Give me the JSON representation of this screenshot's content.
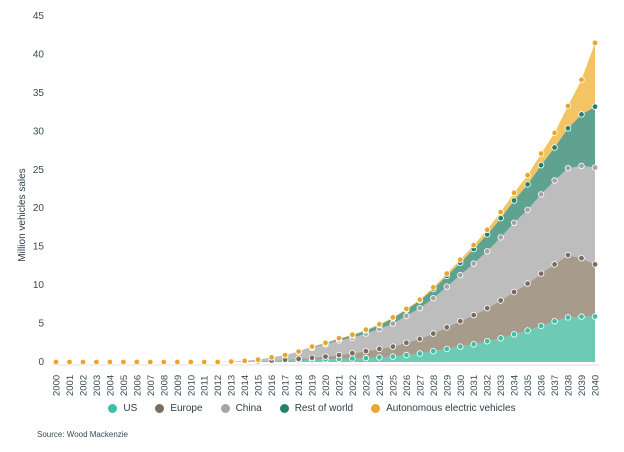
{
  "chart_data": {
    "type": "area",
    "stacked": true,
    "ylabel": "Million vehicles sales",
    "xlabel": "",
    "ylim": [
      0,
      45
    ],
    "yticks": [
      0,
      5,
      10,
      15,
      20,
      25,
      30,
      35,
      40,
      45
    ],
    "x": [
      "2000",
      "2001",
      "2002",
      "2003",
      "2004",
      "2005",
      "2006",
      "2007",
      "2008",
      "2009",
      "2010",
      "2011",
      "2012",
      "2013",
      "2014",
      "2015",
      "2016",
      "2017",
      "2018",
      "2019",
      "2020",
      "2021",
      "2022",
      "2023",
      "2024",
      "2025",
      "2026",
      "2027",
      "2028",
      "2029",
      "2030",
      "2031",
      "2032",
      "2033",
      "2034",
      "2035",
      "2036",
      "2037",
      "2038",
      "2039",
      "2040"
    ],
    "series": [
      {
        "name": "US",
        "color": "#6dcbb5",
        "marker": "#3cbfa5",
        "values": [
          0,
          0,
          0,
          0,
          0,
          0,
          0,
          0,
          0,
          0,
          0,
          0,
          0,
          0,
          0.05,
          0.1,
          0.15,
          0.2,
          0.25,
          0.3,
          0.35,
          0.4,
          0.45,
          0.5,
          0.6,
          0.7,
          0.9,
          1.1,
          1.4,
          1.7,
          2.0,
          2.3,
          2.7,
          3.1,
          3.6,
          4.1,
          4.7,
          5.3,
          5.8,
          5.9,
          5.9
        ]
      },
      {
        "name": "Europe",
        "color": "#a79b8c",
        "marker": "#7b6c5d",
        "values": [
          0,
          0,
          0,
          0,
          0,
          0,
          0,
          0,
          0,
          0,
          0,
          0,
          0,
          0,
          0,
          0,
          0.05,
          0.1,
          0.15,
          0.25,
          0.35,
          0.5,
          0.7,
          0.9,
          1.1,
          1.3,
          1.6,
          1.9,
          2.3,
          2.8,
          3.3,
          3.8,
          4.3,
          4.9,
          5.5,
          6.1,
          6.8,
          7.4,
          8.1,
          7.6,
          6.8
        ]
      },
      {
        "name": "China",
        "color": "#bdbdbd",
        "marker": "#a5a5a5",
        "values": [
          0,
          0,
          0,
          0,
          0,
          0,
          0,
          0,
          0,
          0,
          0,
          0,
          0,
          0.05,
          0.1,
          0.2,
          0.4,
          0.6,
          0.9,
          1.3,
          1.6,
          1.9,
          2.0,
          2.3,
          2.6,
          3.0,
          3.5,
          4.0,
          4.6,
          5.3,
          6.0,
          6.7,
          7.4,
          8.2,
          9.0,
          9.6,
          10.3,
          10.9,
          11.3,
          12.0,
          12.6
        ]
      },
      {
        "name": "Rest of world",
        "color": "#5fa290",
        "marker": "#26806a",
        "values": [
          0,
          0,
          0,
          0,
          0,
          0,
          0,
          0,
          0,
          0,
          0,
          0,
          0,
          0,
          0,
          0,
          0,
          0,
          0.05,
          0.1,
          0.15,
          0.2,
          0.3,
          0.4,
          0.5,
          0.7,
          0.8,
          1.0,
          1.2,
          1.4,
          1.6,
          1.9,
          2.2,
          2.5,
          2.9,
          3.3,
          3.8,
          4.3,
          5.2,
          6.7,
          7.9
        ]
      },
      {
        "name": "Autonomous electric vehicles",
        "color": "#f4c463",
        "marker": "#eba52c",
        "values": [
          0,
          0,
          0,
          0,
          0,
          0,
          0,
          0,
          0,
          0,
          0,
          0,
          0,
          0,
          0,
          0,
          0,
          0,
          0,
          0.05,
          0.05,
          0.1,
          0.1,
          0.1,
          0.1,
          0.1,
          0.1,
          0.1,
          0.2,
          0.3,
          0.4,
          0.5,
          0.6,
          0.8,
          1.0,
          1.2,
          1.5,
          1.9,
          2.9,
          4.5,
          8.3
        ]
      }
    ],
    "legend_position": "bottom",
    "grid": false
  },
  "source": "Source: Wood Mackenzie"
}
